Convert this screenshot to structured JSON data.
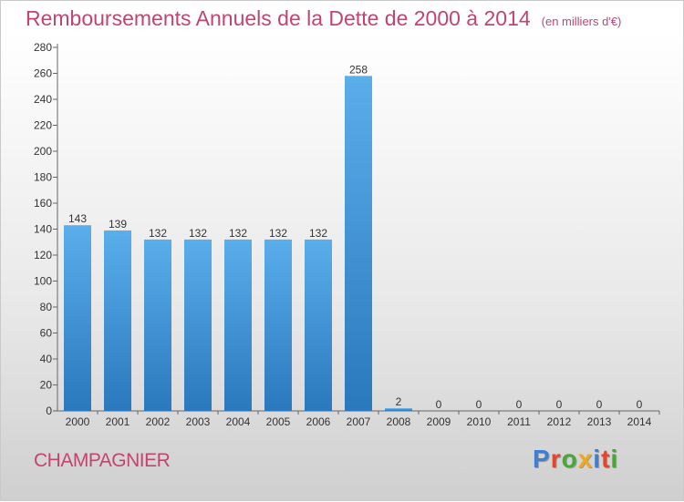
{
  "title": "Remboursements Annuels de la Dette de 2000 à 2014",
  "unit_note": "(en milliers d'€)",
  "commune": "CHAMPAGNIER",
  "logo": {
    "text": "Proxiti",
    "letter_colors": [
      "#3f7fd3",
      "#e2462f",
      "#4aa83a",
      "#f0a81c",
      "#3f7fd3",
      "#e2462f",
      "#4aa83a"
    ]
  },
  "colors": {
    "title": "#c2456f",
    "bar_top": "#5aaeea",
    "bar_bottom": "#2a78bd"
  },
  "chart_data": {
    "type": "bar",
    "categories": [
      "2000",
      "2001",
      "2002",
      "2003",
      "2004",
      "2005",
      "2006",
      "2007",
      "2008",
      "2009",
      "2010",
      "2011",
      "2012",
      "2013",
      "2014"
    ],
    "values": [
      143,
      139,
      132,
      132,
      132,
      132,
      132,
      258,
      2,
      0,
      0,
      0,
      0,
      0,
      0
    ],
    "data_labels": [
      "143",
      "139",
      "132",
      "132",
      "132",
      "132",
      "132",
      "258",
      "2",
      "0",
      "0",
      "0",
      "0",
      "0",
      "0"
    ],
    "ylim": [
      0,
      280
    ],
    "yticks": [
      0,
      20,
      40,
      60,
      80,
      100,
      120,
      140,
      160,
      180,
      200,
      220,
      240,
      260,
      280
    ],
    "grid": false,
    "xlabel": "",
    "ylabel": ""
  }
}
